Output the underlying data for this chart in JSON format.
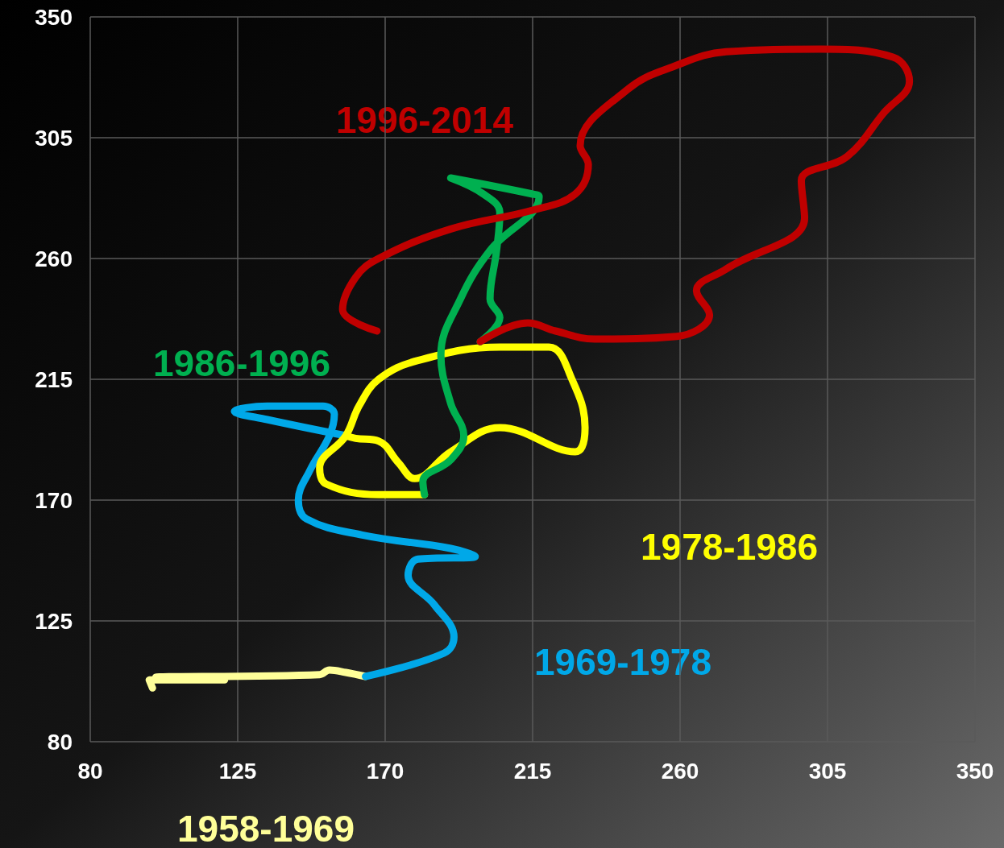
{
  "chart_data": {
    "type": "line",
    "xlim": [
      80,
      350
    ],
    "ylim": [
      80,
      350
    ],
    "xticks": [
      80,
      125,
      170,
      215,
      260,
      305,
      350
    ],
    "yticks": [
      80,
      125,
      170,
      215,
      260,
      305,
      350
    ],
    "grid": true,
    "marker": "none",
    "line_style": "solid",
    "series": [
      {
        "name": "1958-1969",
        "color": "#ffff99",
        "x": [
          99,
          98,
          121,
          100,
          150,
          153,
          158,
          164
        ],
        "values": [
          100,
          103,
          103,
          104,
          105,
          106.7,
          105.8,
          104.3
        ]
      },
      {
        "name": "1969-1978",
        "color": "#00a8e8",
        "x": [
          164,
          188,
          191,
          185,
          177,
          180,
          197.5,
          190,
          163,
          146,
          143.5,
          147,
          153,
          154.5,
          151,
          134,
          124,
          134,
          158
        ],
        "values": [
          104.3,
          113,
          119,
          131,
          142,
          148,
          149,
          152,
          157,
          163,
          170,
          181,
          194,
          202,
          205,
          205,
          203,
          200,
          194
        ]
      },
      {
        "name": "1978-1986",
        "color": "#ffff00",
        "x": [
          158,
          161,
          168,
          174,
          179,
          190,
          205,
          228,
          231,
          227,
          220,
          205,
          180,
          168,
          162,
          158,
          150,
          152,
          168,
          182
        ],
        "values": [
          194,
          193,
          192,
          184,
          178,
          188,
          197,
          188,
          197,
          215,
          227,
          227,
          222,
          215,
          205,
          194,
          182,
          176,
          172,
          172
        ]
      },
      {
        "name": "1986-1996",
        "color": "#00b050",
        "x": [
          182,
          181.5,
          190,
          194,
          190,
          187,
          193,
          202,
          217,
          215,
          190,
          200,
          205,
          204,
          202,
          205,
          199
        ],
        "values": [
          172,
          177,
          185,
          194,
          206,
          224,
          245,
          263,
          283,
          284,
          290,
          284,
          277,
          263,
          245,
          238,
          229
        ]
      },
      {
        "name": "1996-2014",
        "color": "#c00000",
        "x": [
          199,
          213.5,
          222,
          234,
          259,
          269,
          265,
          274,
          298,
          297,
          311,
          322,
          330,
          325,
          303,
          274,
          259,
          244,
          229.5,
          232,
          228,
          215,
          190,
          168,
          161,
          157,
          167.5
        ],
        "values": [
          229,
          236,
          233,
          230,
          231,
          239,
          248,
          256,
          275,
          289,
          298,
          314,
          326,
          335,
          338,
          337,
          332,
          323,
          302,
          295,
          284,
          278,
          271,
          260,
          253,
          241,
          233
        ]
      }
    ]
  }
}
